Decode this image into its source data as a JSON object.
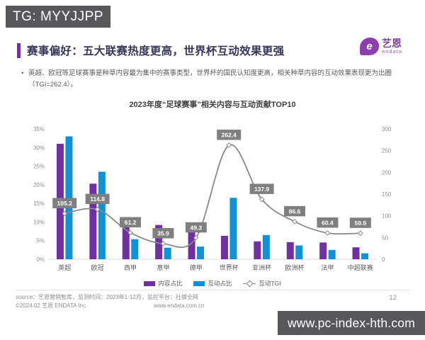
{
  "badge": {
    "text": "TG: MYYJJPP"
  },
  "header": {
    "title": "赛事偏好：五大联赛热度更高，世界杯互动效果更强"
  },
  "logo": {
    "symbol": "e",
    "name": "艺恩",
    "subtitle": "endata"
  },
  "bullet": {
    "marker": "•",
    "text": "英超、欧冠等足球赛事是种草内容最为集中的赛事类型，世界杯的国民认知度更高，相关种草内容的互动效果表现更为出圈（TGI=262.4）。"
  },
  "chart_data": {
    "type": "bar",
    "subtype": "bar+line combo, dual axis",
    "title": "2023年度“足球赛事”相关内容与互动贡献TOP10",
    "categories": [
      "英超",
      "欧冠",
      "西甲",
      "意甲",
      "德甲",
      "世界杯",
      "亚洲杯",
      "欧洲杯",
      "法甲",
      "中超联赛"
    ],
    "series": [
      {
        "name": "内容占比",
        "type": "bar",
        "axis": "left",
        "color": "#7030a0",
        "values": [
          31.0,
          20.3,
          9.5,
          9.2,
          8.8,
          6.3,
          4.8,
          4.6,
          4.5,
          3.2
        ]
      },
      {
        "name": "互动占比",
        "type": "bar",
        "axis": "left",
        "color": "#1092d8",
        "values": [
          33.0,
          23.5,
          5.4,
          3.1,
          3.4,
          16.5,
          6.5,
          3.7,
          2.5,
          1.6
        ]
      },
      {
        "name": "互动TGI",
        "type": "line",
        "axis": "right",
        "color": "#898989",
        "values": [
          105.2,
          114.8,
          61.2,
          35.9,
          49.3,
          262.4,
          137.9,
          86.6,
          60.4,
          59.9
        ]
      }
    ],
    "left_axis": {
      "min": 0,
      "max": 35,
      "step": 5,
      "suffix": "%"
    },
    "right_axis": {
      "min": 0,
      "max": 300,
      "step": 50,
      "suffix": ""
    },
    "grid": false,
    "legend_position": "bottom",
    "label_bg": "#7f7f7f"
  },
  "footer": {
    "source": "source：艺恩营销智库，监测时间：2023年1-12月，监控平台：社媒全网",
    "copyright": "©2024.02 艺恩 ENDATA Inc.",
    "website": "www.endata.com.cn",
    "page": "12"
  },
  "watermark": {
    "text": "www.pc-index-hth.com"
  }
}
